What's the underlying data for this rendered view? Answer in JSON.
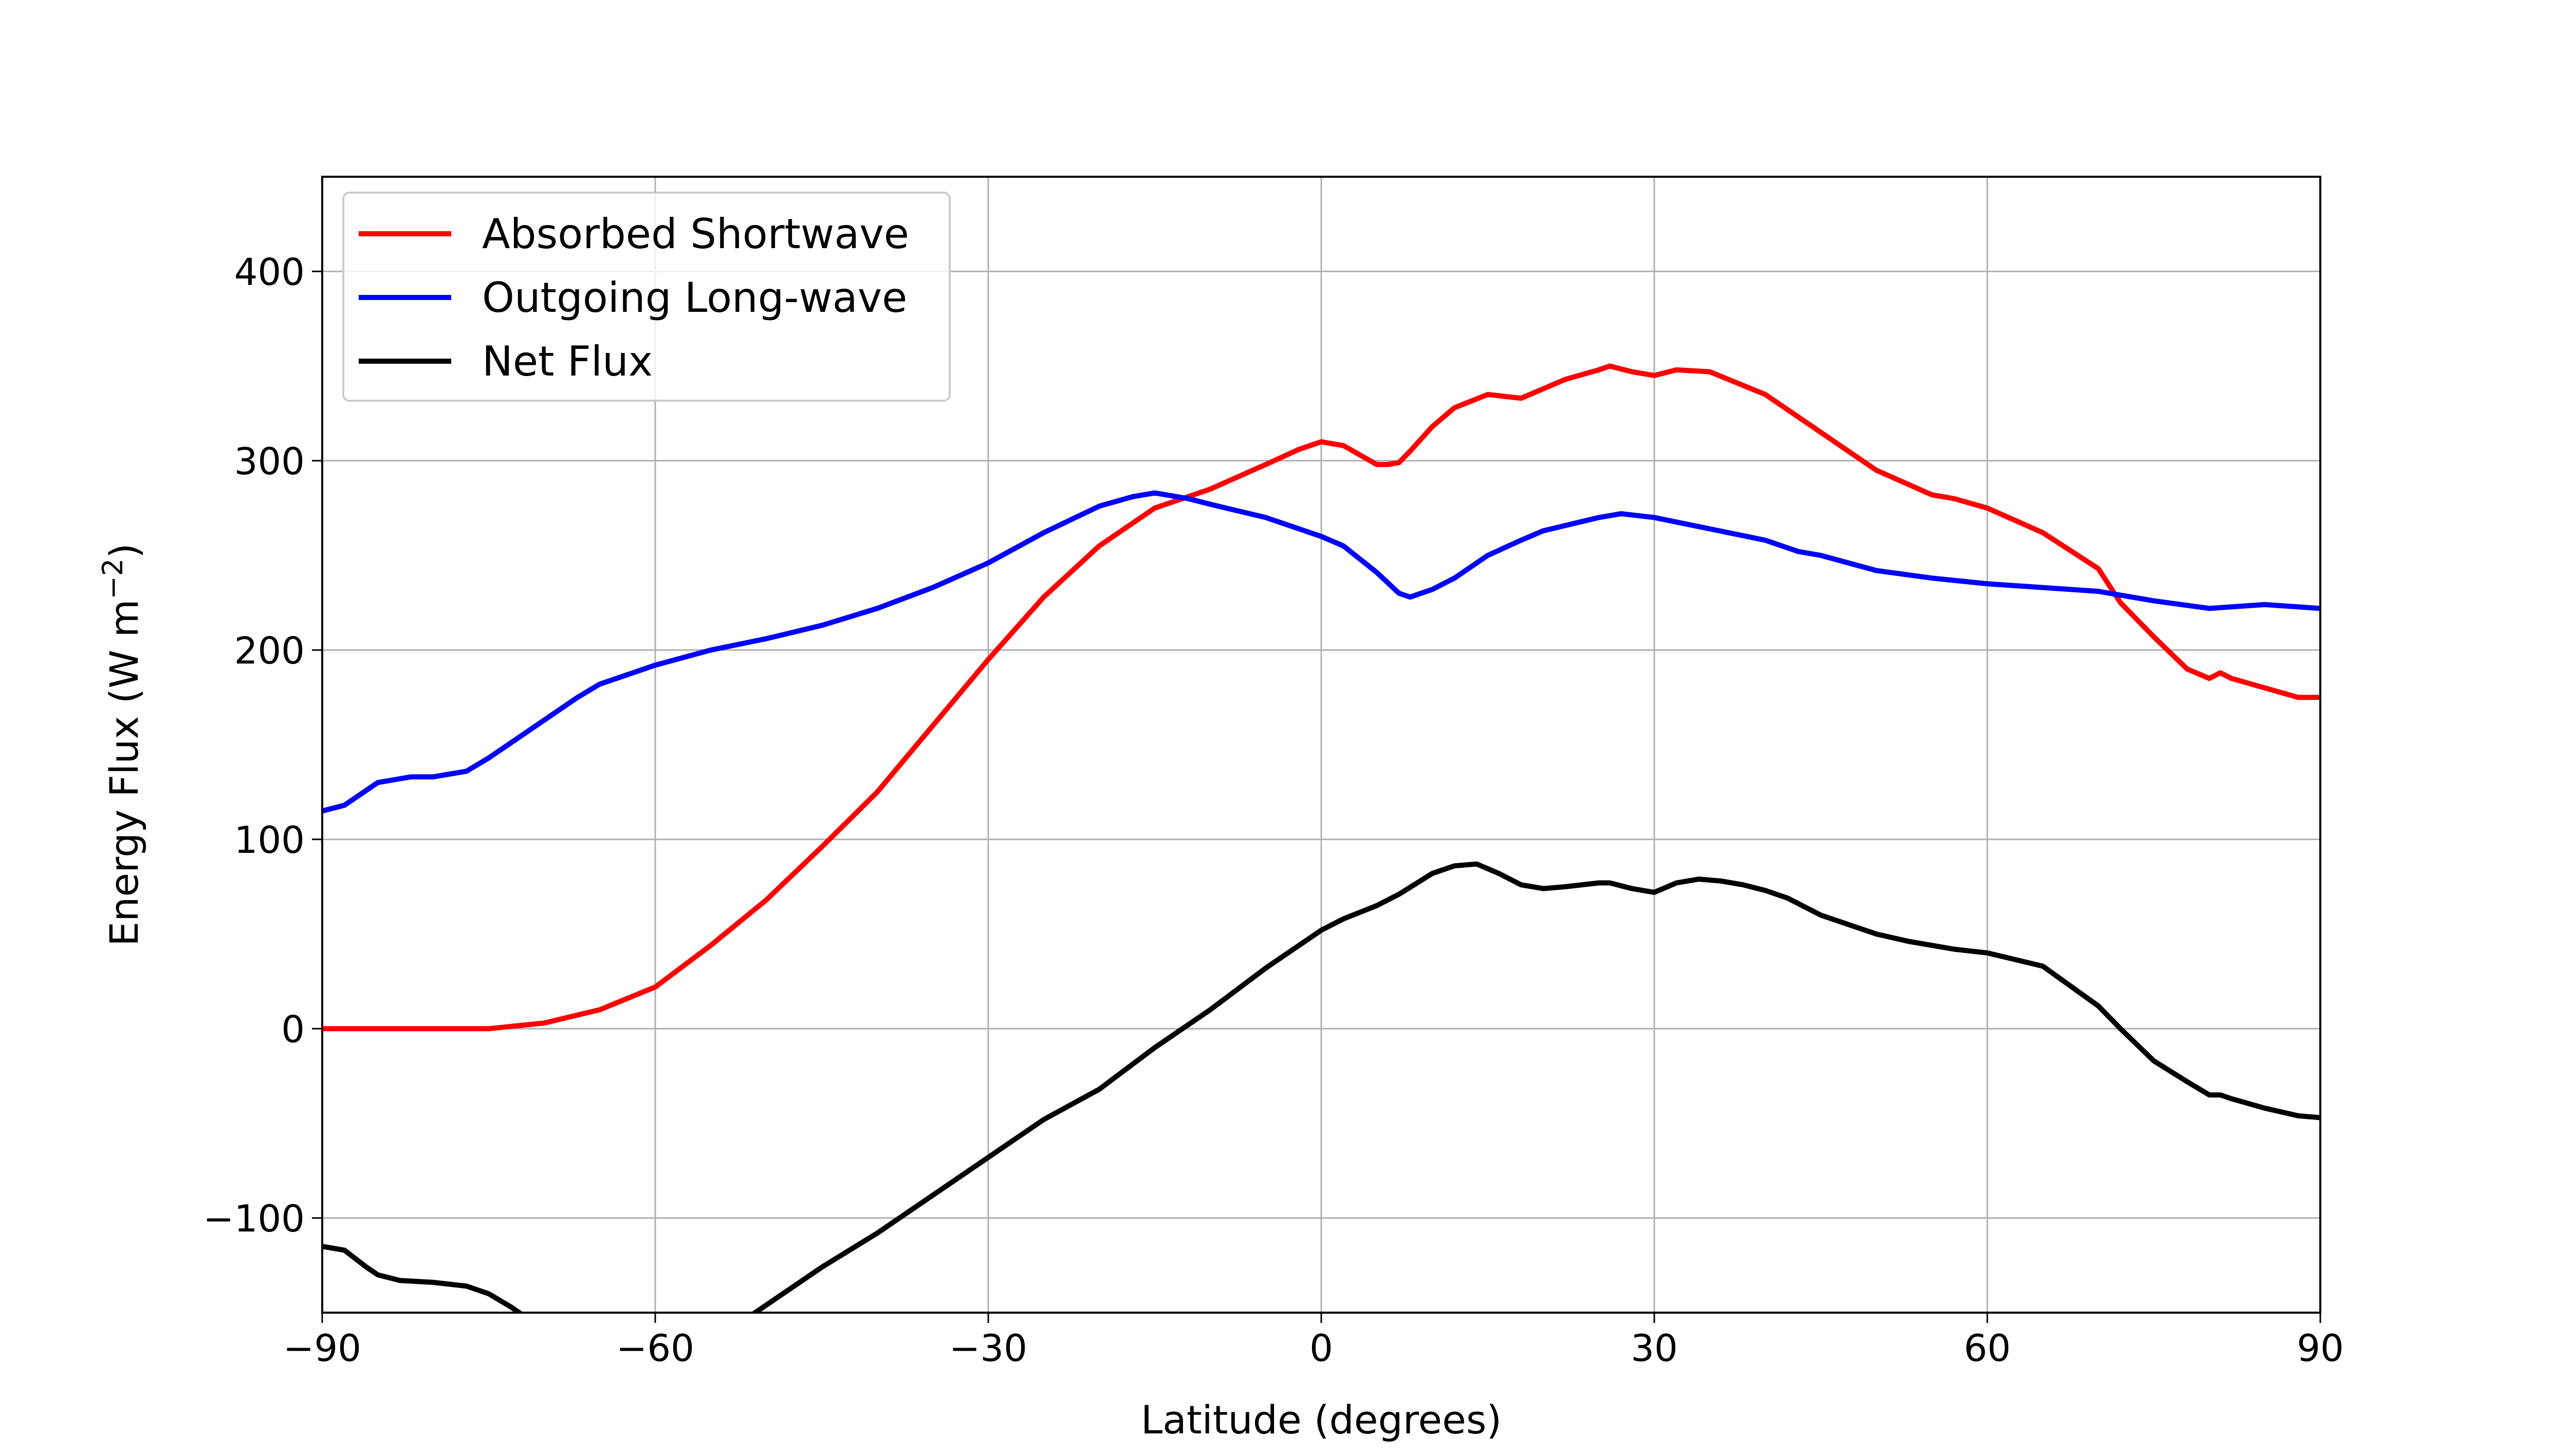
{
  "chart_data": {
    "type": "line",
    "title": "",
    "xlabel": "Latitude (degrees)",
    "ylabel_main": "Energy Flux (W m",
    "ylabel_sup": "−2",
    "ylabel_close": ")",
    "xlim": [
      -90,
      90
    ],
    "ylim": [
      -150,
      450
    ],
    "xticks": [
      -90,
      -60,
      -30,
      0,
      30,
      60,
      90
    ],
    "yticks": [
      -100,
      0,
      100,
      200,
      300,
      400
    ],
    "xtick_labels": [
      "−90",
      "−60",
      "−30",
      "0",
      "30",
      "60",
      "90"
    ],
    "ytick_labels": [
      "−100",
      "0",
      "100",
      "200",
      "300",
      "400"
    ],
    "grid": true,
    "legend_position": "upper-left",
    "series": [
      {
        "name": "Absorbed Shortwave",
        "color": "#ff0000",
        "x": [
          -90,
          -80,
          -75,
          -70,
          -65,
          -60,
          -55,
          -50,
          -45,
          -40,
          -35,
          -30,
          -25,
          -20,
          -15,
          -10,
          -5,
          -2,
          0,
          2,
          5,
          6,
          7,
          8,
          10,
          12,
          15,
          18,
          20,
          22,
          25,
          26,
          28,
          30,
          32,
          35,
          40,
          45,
          50,
          55,
          57,
          60,
          65,
          70,
          72,
          75,
          78,
          80,
          81,
          82,
          85,
          88,
          90
        ],
        "values": [
          0,
          0,
          0,
          3,
          10,
          22,
          44,
          68,
          96,
          125,
          160,
          195,
          228,
          255,
          275,
          285,
          298,
          306,
          310,
          308,
          298,
          298,
          299,
          305,
          318,
          328,
          335,
          333,
          338,
          343,
          348,
          350,
          347,
          345,
          348,
          347,
          335,
          315,
          295,
          282,
          280,
          275,
          262,
          243,
          225,
          207,
          190,
          185,
          188,
          185,
          180,
          175,
          175
        ]
      },
      {
        "name": "Outgoing Long-wave",
        "color": "#0000ff",
        "x": [
          -90,
          -88,
          -85,
          -82,
          -80,
          -77,
          -75,
          -72,
          -70,
          -67,
          -65,
          -62,
          -60,
          -55,
          -50,
          -45,
          -40,
          -35,
          -30,
          -25,
          -20,
          -17,
          -15,
          -12,
          -10,
          -5,
          0,
          2,
          5,
          7,
          8,
          10,
          12,
          15,
          18,
          20,
          25,
          27,
          30,
          35,
          40,
          43,
          45,
          50,
          55,
          60,
          65,
          70,
          75,
          80,
          85,
          90
        ],
        "values": [
          115,
          118,
          130,
          133,
          133,
          136,
          143,
          155,
          163,
          175,
          182,
          188,
          192,
          200,
          206,
          213,
          222,
          233,
          246,
          262,
          276,
          281,
          283,
          280,
          277,
          270,
          260,
          255,
          241,
          230,
          228,
          232,
          238,
          250,
          258,
          263,
          270,
          272,
          270,
          264,
          258,
          252,
          250,
          242,
          238,
          235,
          233,
          231,
          226,
          222,
          224,
          222
        ]
      },
      {
        "name": "Net Flux",
        "color": "#000000",
        "x": [
          -90,
          -88,
          -86,
          -85,
          -83,
          -80,
          -77,
          -75,
          -73,
          -72,
          -70,
          -65,
          -60,
          -55,
          -53,
          -52,
          -50,
          -45,
          -40,
          -35,
          -30,
          -25,
          -20,
          -15,
          -10,
          -5,
          0,
          2,
          5,
          7,
          10,
          12,
          14,
          16,
          18,
          20,
          22,
          25,
          26,
          28,
          30,
          32,
          34,
          36,
          38,
          40,
          42,
          45,
          50,
          53,
          55,
          57,
          60,
          65,
          70,
          72,
          75,
          78,
          80,
          81,
          82,
          85,
          88,
          90
        ],
        "values": [
          -115,
          -117,
          -126,
          -130,
          -133,
          -134,
          -136,
          -140,
          -147,
          -151,
          -160,
          -172,
          -175,
          -174,
          -160,
          -154,
          -146,
          -126,
          -108,
          -88,
          -68,
          -48,
          -32,
          -10,
          10,
          32,
          52,
          58,
          65,
          71,
          82,
          86,
          87,
          82,
          76,
          74,
          75,
          77,
          77,
          74,
          72,
          77,
          79,
          78,
          76,
          73,
          69,
          60,
          50,
          46,
          44,
          42,
          40,
          33,
          12,
          0,
          -17,
          -28,
          -35,
          -35,
          -37,
          -42,
          -46,
          -47
        ]
      }
    ]
  }
}
